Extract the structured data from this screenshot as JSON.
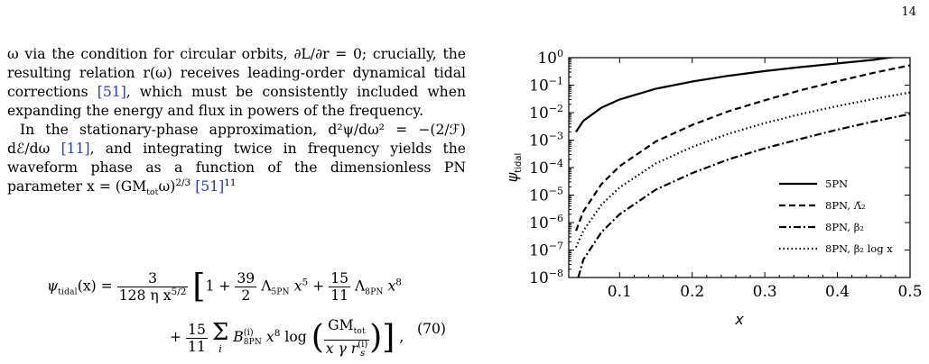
{
  "page_number": "14",
  "body": {
    "para1": "ω via the condition for circular orbits, ∂L/∂r = 0; crucially, the resulting relation r(ω) receives leading-order dynamical tidal corrections",
    "para1_cite": "[51]",
    "para1_end": ", which must be consistently included when expanding the energy and flux in powers of the frequency.",
    "para2_a": "In the stationary-phase approximation, d²ψ/dω² = −(2/ℱ) dℰ/dω",
    "para2_cite1": "[11]",
    "para2_b": ", and integrating twice in frequency yields the waveform phase as a function of the dimensionless PN parameter x = (GM",
    "para2_sub": "tot",
    "para2_c": "ω)",
    "para2_sup": "2/3",
    "para2_cite2": "[51]",
    "para2_fn": "11"
  },
  "equation": {
    "lhs": "ψ",
    "lhs_sub": "tidal",
    "lhs_arg": "(x) =",
    "f1_num": "3",
    "f1_den": "128 η x",
    "f1_den_sup": "5/2",
    "one": "1 +",
    "f2_num": "39",
    "f2_den": "2",
    "lam5": "Λ",
    "lam5_sub": "5PN",
    "x5": "x",
    "x5_sup": "5",
    "plus": "+",
    "f3_num": "15",
    "f3_den": "11",
    "lam8": "Λ",
    "lam8_sub": "8PN",
    "x8": "x",
    "x8_sup": "8",
    "l2_plus": "+",
    "f4_num": "15",
    "f4_den": "11",
    "sum": "Σ",
    "sum_sub": "i",
    "B": "B",
    "B_sup": "(i)",
    "B_sub": "8PN",
    "x8b": "x",
    "x8b_sup": "8",
    "log": "log",
    "f5_num": "GM",
    "f5_num_sub": "tot",
    "f5_den": "x γ r",
    "f5_den_sub": "s",
    "f5_den_sup": "(i)",
    "tail": ",",
    "number": "(70)"
  },
  "chart_data": {
    "type": "line",
    "xlabel": "x",
    "ylabel": "ψtidal",
    "xlim": [
      0.03,
      0.5
    ],
    "ylim_log10": [
      -8,
      0
    ],
    "yscale": "log",
    "x_ticks": [
      "0.1",
      "0.2",
      "0.3",
      "0.4",
      "0.5"
    ],
    "y_ticks": [
      {
        "base": "10",
        "exp": "0"
      },
      {
        "base": "10",
        "exp": "−1"
      },
      {
        "base": "10",
        "exp": "−2"
      },
      {
        "base": "10",
        "exp": "−3"
      },
      {
        "base": "10",
        "exp": "−4"
      },
      {
        "base": "10",
        "exp": "−5"
      },
      {
        "base": "10",
        "exp": "−6"
      },
      {
        "base": "10",
        "exp": "−7"
      },
      {
        "base": "10",
        "exp": "−8"
      }
    ],
    "legend_position": "bottom-right",
    "series": [
      {
        "name": "5PN",
        "dash": "solid",
        "x": [
          0.04,
          0.05,
          0.075,
          0.1,
          0.15,
          0.2,
          0.25,
          0.3,
          0.35,
          0.4,
          0.45,
          0.47,
          0.5
        ],
        "log10_y": [
          -2.7,
          -2.3,
          -1.82,
          -1.52,
          -1.13,
          -0.87,
          -0.66,
          -0.49,
          -0.34,
          -0.21,
          -0.08,
          0,
          0.08
        ]
      },
      {
        "name": "8PN, Λ̄₂",
        "dash": "dashed",
        "x": [
          0.04,
          0.05,
          0.075,
          0.1,
          0.15,
          0.2,
          0.25,
          0.3,
          0.35,
          0.4,
          0.45,
          0.5
        ],
        "log10_y": [
          -6.3,
          -5.6,
          -4.6,
          -3.95,
          -3.05,
          -2.45,
          -1.95,
          -1.55,
          -1.18,
          -0.86,
          -0.55,
          -0.28
        ]
      },
      {
        "name": "8PN, β₂",
        "dash": "dashdot",
        "x": [
          0.043,
          0.05,
          0.075,
          0.1,
          0.15,
          0.2,
          0.25,
          0.3,
          0.35,
          0.4,
          0.45,
          0.5
        ],
        "log10_y": [
          -8.0,
          -7.35,
          -6.35,
          -5.7,
          -4.8,
          -4.2,
          -3.7,
          -3.3,
          -2.95,
          -2.62,
          -2.32,
          -2.05
        ]
      },
      {
        "name": "8PN, β₂ log x",
        "dash": "dotted",
        "x": [
          0.04,
          0.05,
          0.075,
          0.1,
          0.15,
          0.2,
          0.25,
          0.3,
          0.35,
          0.4,
          0.45,
          0.5
        ],
        "log10_y": [
          -6.9,
          -6.3,
          -5.35,
          -4.72,
          -3.85,
          -3.25,
          -2.77,
          -2.38,
          -2.05,
          -1.76,
          -1.5,
          -1.27
        ]
      }
    ]
  }
}
